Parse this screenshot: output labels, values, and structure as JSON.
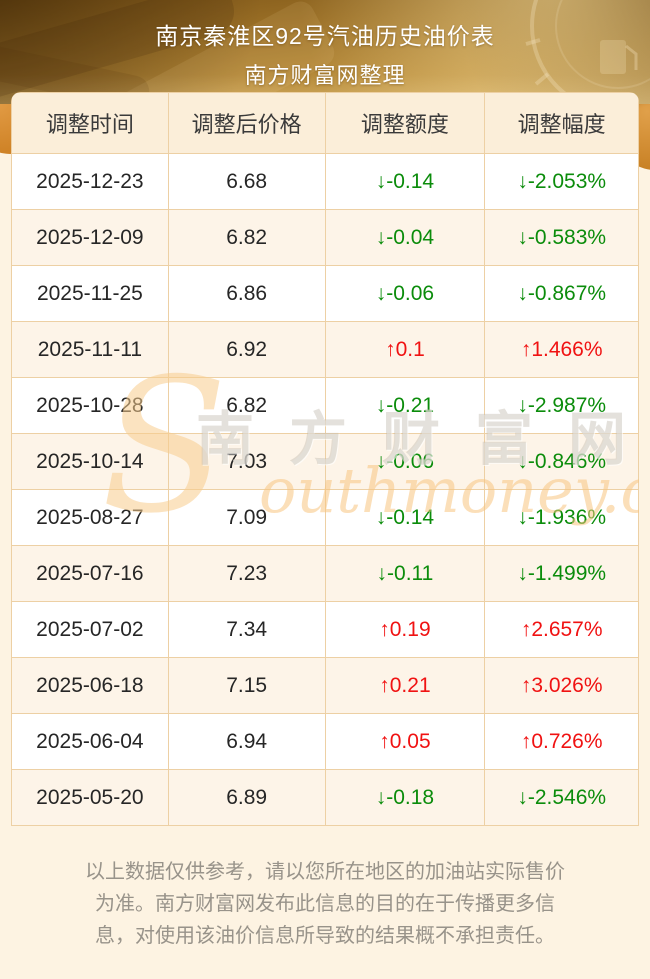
{
  "banner": {
    "title": "南京秦淮区92号汽油历史油价表",
    "subtitle": "南方财富网整理"
  },
  "table": {
    "headers": [
      "调整时间",
      "调整后价格",
      "调整额度",
      "调整幅度"
    ],
    "rows": [
      {
        "date": "2025-12-23",
        "price": "6.68",
        "change": "↓-0.14",
        "pct": "↓-2.053%",
        "direction": "down"
      },
      {
        "date": "2025-12-09",
        "price": "6.82",
        "change": "↓-0.04",
        "pct": "↓-0.583%",
        "direction": "down"
      },
      {
        "date": "2025-11-25",
        "price": "6.86",
        "change": "↓-0.06",
        "pct": "↓-0.867%",
        "direction": "down"
      },
      {
        "date": "2025-11-11",
        "price": "6.92",
        "change": "↑0.1",
        "pct": "↑1.466%",
        "direction": "up"
      },
      {
        "date": "2025-10-28",
        "price": "6.82",
        "change": "↓-0.21",
        "pct": "↓-2.987%",
        "direction": "down"
      },
      {
        "date": "2025-10-14",
        "price": "7.03",
        "change": "↓-0.06",
        "pct": "↓-0.846%",
        "direction": "down"
      },
      {
        "date": "2025-08-27",
        "price": "7.09",
        "change": "↓-0.14",
        "pct": "↓-1.936%",
        "direction": "down"
      },
      {
        "date": "2025-07-16",
        "price": "7.23",
        "change": "↓-0.11",
        "pct": "↓-1.499%",
        "direction": "down"
      },
      {
        "date": "2025-07-02",
        "price": "7.34",
        "change": "↑0.19",
        "pct": "↑2.657%",
        "direction": "up"
      },
      {
        "date": "2025-06-18",
        "price": "7.15",
        "change": "↑0.21",
        "pct": "↑3.026%",
        "direction": "up"
      },
      {
        "date": "2025-06-04",
        "price": "6.94",
        "change": "↑0.05",
        "pct": "↑0.726%",
        "direction": "up"
      },
      {
        "date": "2025-05-20",
        "price": "6.89",
        "change": "↓-0.18",
        "pct": "↓-2.546%",
        "direction": "down"
      }
    ]
  },
  "watermark": {
    "s": "S",
    "cn": "南方财富网",
    "script": "outhmoney.com"
  },
  "footer": {
    "disclaimer_lines": [
      "以上数据仅供参考，请以您所在地区的加油站实际售价",
      "为准。南方财富网发布此信息的目的在于传播更多信",
      "息，对使用该油价信息所导致的结果概不承担责任。"
    ]
  },
  "colors": {
    "up": "#f01212",
    "down": "#0b8c0b",
    "banner_gold": "#bb8f3e",
    "page_bg": "#fdf3e2",
    "table_border": "#edd0a4"
  }
}
